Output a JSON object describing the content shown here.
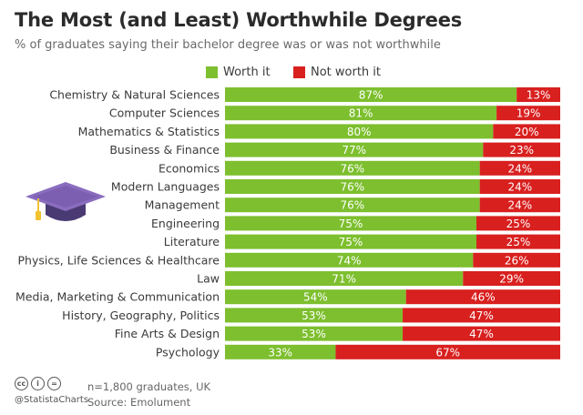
{
  "header": {
    "title": "The Most (and Least) Worthwhile Degrees",
    "subtitle": "% of graduates saying their bachelor degree was or was not worthwhile"
  },
  "legend": [
    {
      "label": "Worth it",
      "color": "#7dbf2e"
    },
    {
      "label": "Not worth it",
      "color": "#d8201f"
    }
  ],
  "footer": {
    "cc_icons": [
      "cc-icon",
      "by-icon",
      "equals-icon"
    ],
    "brand": "@StatistaCharts",
    "note": "n=1,800 graduates, UK",
    "source": "Source: Emolument"
  },
  "chart_data": {
    "type": "bar",
    "orientation": "horizontal",
    "stacked": true,
    "title": "The Most (and Least) Worthwhile Degrees",
    "subtitle": "% of graduates saying their bachelor degree was or was not worthwhile",
    "categories": [
      "Chemistry & Natural Sciences",
      "Computer Sciences",
      "Mathematics & Statistics",
      "Business & Finance",
      "Economics",
      "Modern Languages",
      "Management",
      "Engineering",
      "Literature",
      "Physics, Life Sciences & Healthcare",
      "Law",
      "Media, Marketing & Communication",
      "History, Geography, Politics",
      "Fine Arts & Design",
      "Psychology"
    ],
    "series": [
      {
        "name": "Worth it",
        "color": "#7dbf2e",
        "values": [
          87,
          81,
          80,
          77,
          76,
          76,
          76,
          75,
          75,
          74,
          71,
          54,
          53,
          53,
          33
        ]
      },
      {
        "name": "Not worth it",
        "color": "#d8201f",
        "values": [
          13,
          19,
          20,
          23,
          24,
          24,
          24,
          25,
          25,
          26,
          29,
          46,
          47,
          47,
          67
        ]
      }
    ],
    "data_labels": {
      "worth": [
        "87%",
        "81%",
        "80%",
        "77%",
        "76%",
        "76%",
        "76%",
        "75%",
        "75%",
        "74%",
        "71%",
        "54%",
        "53%",
        "53%",
        "33%"
      ],
      "not_worth": [
        "13%",
        "19%",
        "20%",
        "23%",
        "24%",
        "24%",
        "24%",
        "25%",
        "25%",
        "26%",
        "29%",
        "46%",
        "47%",
        "47%",
        "67%"
      ]
    },
    "xlim": [
      0,
      100
    ],
    "grid": false,
    "legend_position": "top-center"
  }
}
